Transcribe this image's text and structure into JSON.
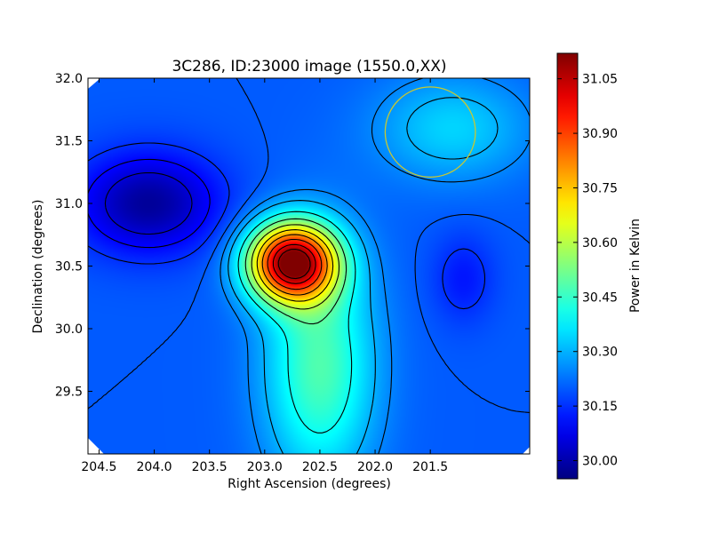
{
  "chart_data": {
    "type": "heatmap",
    "title": "3C286, ID:23000 image (1550.0,XX)",
    "xlabel": "Right Ascension (degrees)",
    "ylabel": "Declination (degrees)",
    "colorbar_label": "Power in Kelvin",
    "colormap": "jet",
    "xlim": [
      204.6,
      200.6
    ],
    "ylim": [
      29.0,
      32.0
    ],
    "x_ticks": [
      204.5,
      204.0,
      203.5,
      203.0,
      202.5,
      202.0,
      201.5
    ],
    "x_tick_labels": [
      "204.5",
      "204.0",
      "203.5",
      "203.0",
      "202.5",
      "202.0",
      "201.5"
    ],
    "y_ticks": [
      29.5,
      30.0,
      30.5,
      31.0,
      31.5,
      32.0
    ],
    "y_tick_labels": [
      "29.5",
      "30.0",
      "30.5",
      "31.0",
      "31.5",
      "32.0"
    ],
    "color_range": [
      29.95,
      31.12
    ],
    "colorbar_ticks": [
      30.0,
      30.15,
      30.3,
      30.45,
      30.6,
      30.75,
      30.9,
      31.05
    ],
    "colorbar_tick_labels": [
      "30.00",
      "30.15",
      "30.30",
      "30.45",
      "30.60",
      "30.75",
      "30.90",
      "31.05"
    ],
    "background_level": 30.2,
    "features": [
      {
        "kind": "peak",
        "ra": 202.75,
        "dec": 30.53,
        "value": 31.1,
        "width_ra": 0.28,
        "width_dec": 0.22
      },
      {
        "kind": "extended",
        "ra": 202.5,
        "dec": 29.7,
        "value": 30.48,
        "width_ra": 0.35,
        "width_dec": 0.65
      },
      {
        "kind": "minimum",
        "ra": 204.05,
        "dec": 31.0,
        "value": 29.98,
        "width_ra": 0.45,
        "width_dec": 0.28
      },
      {
        "kind": "minimum",
        "ra": 201.2,
        "dec": 30.4,
        "value": 30.12,
        "width_ra": 0.2,
        "width_dec": 0.25
      },
      {
        "kind": "elevated",
        "ra": 201.3,
        "dec": 31.6,
        "value": 30.34,
        "width_ra": 0.5,
        "width_dec": 0.3
      }
    ],
    "beam": {
      "ra": 201.5,
      "dec": 31.57,
      "radius_dec": 0.36,
      "color": "#c8c832"
    },
    "contour_levels": [
      30.05,
      30.1,
      30.15,
      30.2,
      30.25,
      30.3,
      30.4,
      30.5,
      30.6,
      30.7,
      30.8,
      30.9,
      31.0,
      31.08
    ],
    "grid": false
  }
}
